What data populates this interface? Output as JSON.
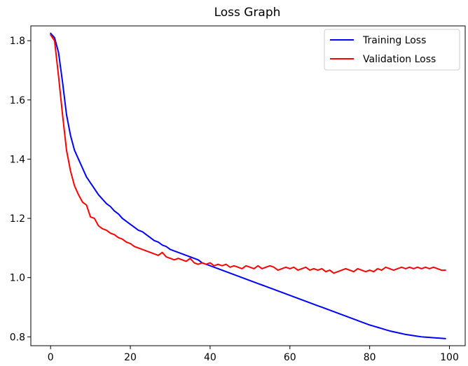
{
  "chart_data": {
    "type": "line",
    "title": "Loss Graph",
    "xlabel": "",
    "ylabel": "",
    "xlim": [
      -4.95,
      103.95
    ],
    "ylim": [
      0.77,
      1.85
    ],
    "xticks": [
      0,
      20,
      40,
      60,
      80,
      100
    ],
    "yticks": [
      0.8,
      1.0,
      1.2,
      1.4,
      1.6,
      1.8
    ],
    "xtick_labels": [
      "0",
      "20",
      "40",
      "60",
      "80",
      "100"
    ],
    "ytick_labels": [
      "0.8",
      "1.0",
      "1.2",
      "1.4",
      "1.6",
      "1.8"
    ],
    "grid": false,
    "legend_position": "top-right",
    "series": [
      {
        "name": "Training Loss",
        "color": "#0000ff",
        "x": [
          0,
          1,
          2,
          3,
          4,
          5,
          6,
          7,
          8,
          9,
          10,
          11,
          12,
          13,
          14,
          15,
          16,
          17,
          18,
          19,
          20,
          21,
          22,
          23,
          24,
          25,
          26,
          27,
          28,
          29,
          30,
          31,
          32,
          33,
          34,
          35,
          36,
          37,
          38,
          39,
          40,
          41,
          42,
          43,
          44,
          45,
          46,
          47,
          48,
          49,
          50,
          51,
          52,
          53,
          54,
          55,
          56,
          57,
          58,
          59,
          60,
          61,
          62,
          63,
          64,
          65,
          66,
          67,
          68,
          69,
          70,
          71,
          72,
          73,
          74,
          75,
          76,
          77,
          78,
          79,
          80,
          81,
          82,
          83,
          84,
          85,
          86,
          87,
          88,
          89,
          90,
          91,
          92,
          93,
          94,
          95,
          96,
          97,
          98,
          99
        ],
        "y": [
          1.825,
          1.81,
          1.76,
          1.66,
          1.55,
          1.48,
          1.43,
          1.4,
          1.37,
          1.34,
          1.32,
          1.3,
          1.28,
          1.265,
          1.25,
          1.24,
          1.225,
          1.215,
          1.2,
          1.19,
          1.18,
          1.17,
          1.16,
          1.155,
          1.145,
          1.135,
          1.125,
          1.12,
          1.11,
          1.105,
          1.095,
          1.09,
          1.085,
          1.08,
          1.075,
          1.07,
          1.065,
          1.06,
          1.05,
          1.045,
          1.04,
          1.035,
          1.03,
          1.025,
          1.02,
          1.015,
          1.01,
          1.005,
          1.0,
          0.995,
          0.99,
          0.985,
          0.98,
          0.975,
          0.97,
          0.965,
          0.96,
          0.955,
          0.95,
          0.945,
          0.94,
          0.935,
          0.93,
          0.925,
          0.92,
          0.915,
          0.91,
          0.905,
          0.9,
          0.895,
          0.89,
          0.885,
          0.88,
          0.875,
          0.87,
          0.865,
          0.86,
          0.855,
          0.85,
          0.845,
          0.84,
          0.836,
          0.832,
          0.828,
          0.824,
          0.82,
          0.817,
          0.814,
          0.811,
          0.808,
          0.806,
          0.804,
          0.802,
          0.8,
          0.799,
          0.798,
          0.797,
          0.796,
          0.795,
          0.794
        ]
      },
      {
        "name": "Validation Loss",
        "color": "#ff0000",
        "x": [
          0,
          1,
          2,
          3,
          4,
          5,
          6,
          7,
          8,
          9,
          10,
          11,
          12,
          13,
          14,
          15,
          16,
          17,
          18,
          19,
          20,
          21,
          22,
          23,
          24,
          25,
          26,
          27,
          28,
          29,
          30,
          31,
          32,
          33,
          34,
          35,
          36,
          37,
          38,
          39,
          40,
          41,
          42,
          43,
          44,
          45,
          46,
          47,
          48,
          49,
          50,
          51,
          52,
          53,
          54,
          55,
          56,
          57,
          58,
          59,
          60,
          61,
          62,
          63,
          64,
          65,
          66,
          67,
          68,
          69,
          70,
          71,
          72,
          73,
          74,
          75,
          76,
          77,
          78,
          79,
          80,
          81,
          82,
          83,
          84,
          85,
          86,
          87,
          88,
          89,
          90,
          91,
          92,
          93,
          94,
          95,
          96,
          97,
          98,
          99
        ],
        "y": [
          1.82,
          1.8,
          1.68,
          1.55,
          1.43,
          1.36,
          1.31,
          1.28,
          1.255,
          1.245,
          1.205,
          1.2,
          1.175,
          1.165,
          1.16,
          1.15,
          1.145,
          1.135,
          1.13,
          1.12,
          1.115,
          1.105,
          1.1,
          1.095,
          1.09,
          1.085,
          1.08,
          1.075,
          1.085,
          1.07,
          1.065,
          1.06,
          1.065,
          1.06,
          1.055,
          1.065,
          1.05,
          1.045,
          1.05,
          1.045,
          1.05,
          1.04,
          1.045,
          1.04,
          1.045,
          1.035,
          1.04,
          1.035,
          1.03,
          1.04,
          1.035,
          1.03,
          1.04,
          1.03,
          1.035,
          1.04,
          1.035,
          1.025,
          1.03,
          1.035,
          1.03,
          1.035,
          1.025,
          1.03,
          1.035,
          1.025,
          1.03,
          1.025,
          1.03,
          1.02,
          1.025,
          1.015,
          1.02,
          1.025,
          1.03,
          1.025,
          1.02,
          1.03,
          1.025,
          1.02,
          1.025,
          1.02,
          1.03,
          1.025,
          1.035,
          1.03,
          1.025,
          1.03,
          1.035,
          1.03,
          1.035,
          1.03,
          1.035,
          1.03,
          1.035,
          1.03,
          1.035,
          1.03,
          1.025,
          1.025
        ]
      }
    ]
  }
}
